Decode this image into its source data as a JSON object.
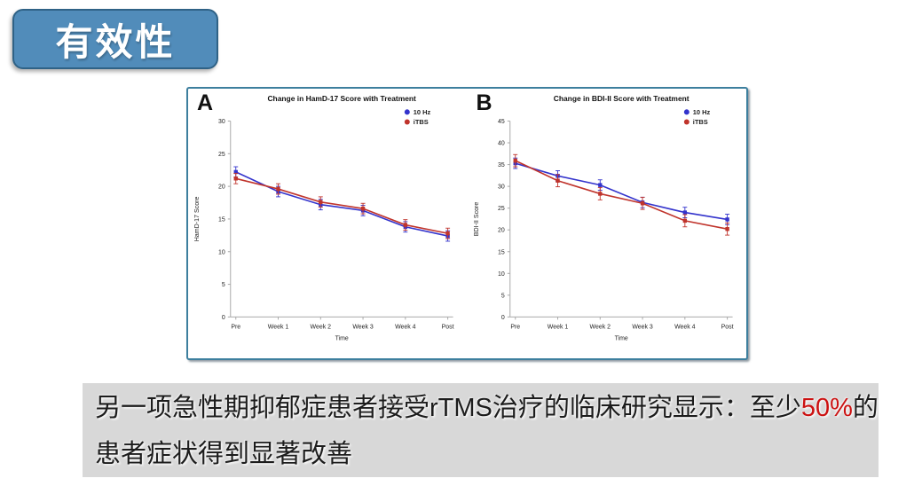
{
  "badge": {
    "label": "有效性",
    "bg_color": "#518cba",
    "border_color": "#2f6286"
  },
  "panel": {
    "border_color": "#3d7f9e"
  },
  "caption": {
    "line1_prefix": "另一项急性期抑郁症患者接受rTMS治疗的临床研究显示：至少",
    "line1_highlight": "50%",
    "line1_suffix": "的",
    "line2": "患者症状得到显著改善",
    "highlight_color": "#cc1111"
  },
  "chart_data": [
    {
      "type": "line",
      "panel_label": "A",
      "title": "Change in HamD-17 Score with Treatment",
      "xlabel": "Time",
      "ylabel": "HamD-17 Score",
      "categories": [
        "Pre",
        "Week 1",
        "Week 2",
        "Week 3",
        "Week 4",
        "Post"
      ],
      "ylim": [
        0,
        30
      ],
      "ytick_step": 5,
      "legend_position": "top-right",
      "grid": false,
      "series": [
        {
          "name": "10 Hz",
          "color": "#3333cc",
          "values": [
            22.2,
            19.2,
            17.2,
            16.3,
            13.8,
            12.4
          ],
          "error": 0.8
        },
        {
          "name": "iTBS",
          "color": "#c0342c",
          "values": [
            21.2,
            19.6,
            17.6,
            16.6,
            14.1,
            12.8
          ],
          "error": 0.8
        }
      ]
    },
    {
      "type": "line",
      "panel_label": "B",
      "title": "Change in BDI-II Score with Treatment",
      "xlabel": "Time",
      "ylabel": "BDI-II Score",
      "categories": [
        "Pre",
        "Week 1",
        "Week 2",
        "Week 3",
        "Week 4",
        "Post"
      ],
      "ylim": [
        0,
        45
      ],
      "ytick_step": 5,
      "legend_position": "top-right",
      "grid": false,
      "series": [
        {
          "name": "10 Hz",
          "color": "#3333cc",
          "values": [
            35.3,
            32.4,
            30.3,
            26.3,
            24.0,
            22.4
          ],
          "error": 1.2
        },
        {
          "name": "iTBS",
          "color": "#c0342c",
          "values": [
            35.9,
            31.3,
            28.3,
            26.1,
            22.1,
            20.2
          ],
          "error": 1.4
        }
      ]
    }
  ]
}
